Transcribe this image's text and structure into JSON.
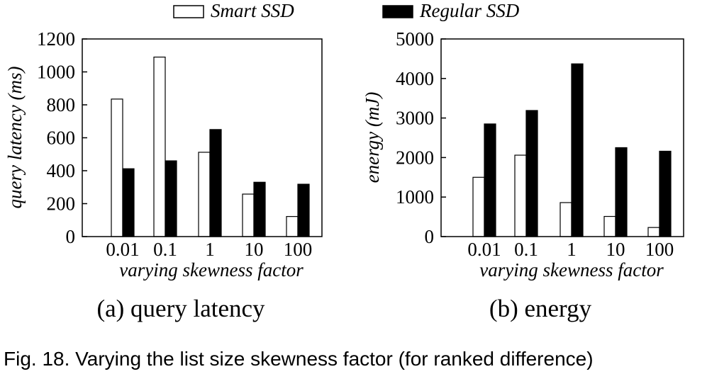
{
  "legend": {
    "items": [
      {
        "label": "Smart SSD",
        "fill": "#ffffff"
      },
      {
        "label": "Regular SSD",
        "fill": "#000000"
      }
    ]
  },
  "caption": "Fig. 18. Varying the list size skewness factor (for ranked difference)",
  "colors": {
    "smart": "#ffffff",
    "regular": "#000000",
    "axis": "#000000"
  },
  "chart_data": [
    {
      "type": "bar",
      "caption": "(a) query latency",
      "xlabel": "varying skewness factor",
      "ylabel": "query latency (ms)",
      "categories": [
        "0.01",
        "0.1",
        "1",
        "10",
        "100"
      ],
      "ylim": [
        0,
        1200
      ],
      "yticks": [
        0,
        200,
        400,
        600,
        800,
        1000,
        1200
      ],
      "grid": false,
      "series": [
        {
          "name": "Smart SSD",
          "values": [
            835,
            1090,
            512,
            258,
            122
          ]
        },
        {
          "name": "Regular SSD",
          "values": [
            412,
            460,
            650,
            330,
            318
          ]
        }
      ]
    },
    {
      "type": "bar",
      "caption": "(b) energy",
      "xlabel": "varying skewness factor",
      "ylabel": "energy (mJ)",
      "categories": [
        "0.01",
        "0.1",
        "1",
        "10",
        "100"
      ],
      "ylim": [
        0,
        5000
      ],
      "yticks": [
        0,
        1000,
        2000,
        3000,
        4000,
        5000
      ],
      "grid": false,
      "series": [
        {
          "name": "Smart SSD",
          "values": [
            1500,
            2060,
            860,
            510,
            230
          ]
        },
        {
          "name": "Regular SSD",
          "values": [
            2850,
            3190,
            4370,
            2250,
            2160
          ]
        }
      ]
    }
  ]
}
